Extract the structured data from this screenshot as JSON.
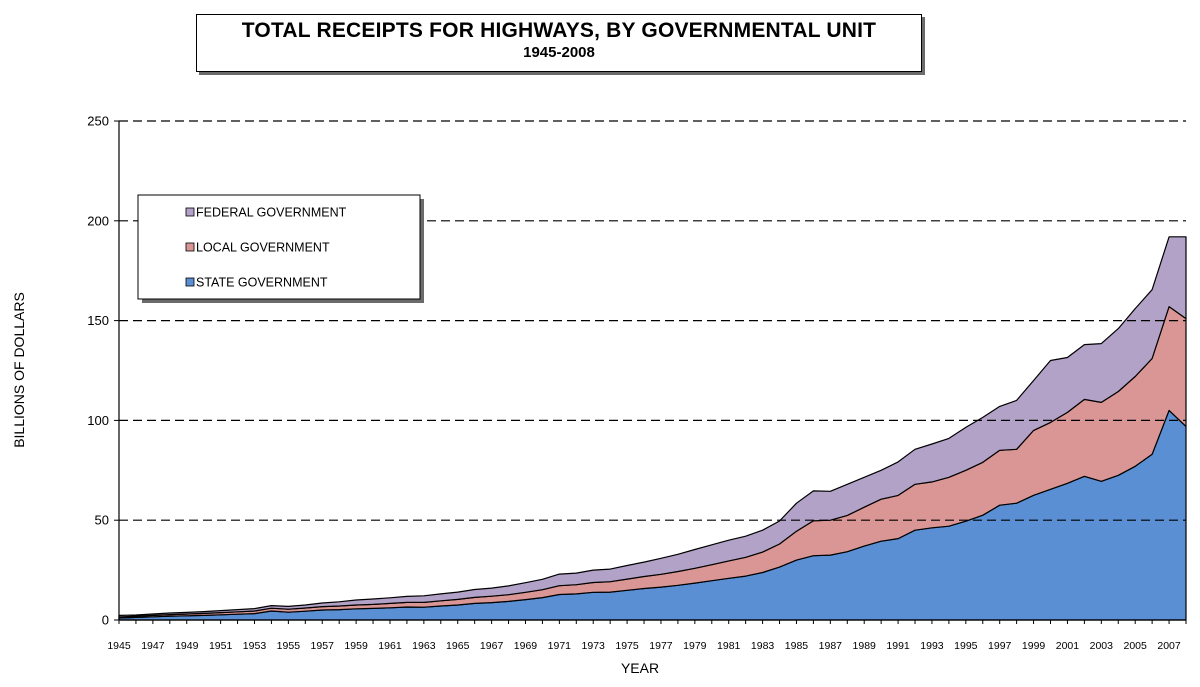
{
  "chart_data": {
    "type": "area",
    "stacked": true,
    "title": "TOTAL RECEIPTS FOR HIGHWAYS, BY GOVERNMENTAL UNIT",
    "subtitle": "1945-2008",
    "xlabel": "YEAR",
    "ylabel": "BILLIONS OF DOLLARS",
    "ylim": [
      0,
      250
    ],
    "yticks": [
      0,
      50,
      100,
      150,
      200,
      250
    ],
    "grid": "dashed horizontal",
    "legend_position": "top-left",
    "x": [
      1945,
      1946,
      1947,
      1948,
      1949,
      1950,
      1951,
      1952,
      1953,
      1954,
      1955,
      1956,
      1957,
      1958,
      1959,
      1960,
      1961,
      1962,
      1963,
      1964,
      1965,
      1966,
      1967,
      1968,
      1969,
      1970,
      1971,
      1972,
      1973,
      1974,
      1975,
      1976,
      1977,
      1978,
      1979,
      1980,
      1981,
      1982,
      1983,
      1984,
      1985,
      1986,
      1987,
      1988,
      1989,
      1990,
      1991,
      1992,
      1993,
      1994,
      1995,
      1996,
      1997,
      1998,
      1999,
      2000,
      2001,
      2002,
      2003,
      2004,
      2005,
      2006,
      2007,
      2008
    ],
    "xticks": [
      "1945",
      "1947",
      "1949",
      "1951",
      "1953",
      "1955",
      "1957",
      "1959",
      "1961",
      "1963",
      "1965",
      "1967",
      "1969",
      "1971",
      "1973",
      "1975",
      "1977",
      "1979",
      "1981",
      "1983",
      "1985",
      "1987",
      "1989",
      "1991",
      "1993",
      "1995",
      "1997",
      "1999",
      "2001",
      "2003",
      "2005",
      "2007"
    ],
    "series": [
      {
        "name": "STATE GOVERNMENT",
        "color": "#5b8fd4",
        "values": [
          1.0,
          1.3,
          1.6,
          1.9,
          2.1,
          2.3,
          2.6,
          2.9,
          3.2,
          4.5,
          3.9,
          4.4,
          5.0,
          5.2,
          5.6,
          5.8,
          6.1,
          6.5,
          6.4,
          7.0,
          7.5,
          8.3,
          8.7,
          9.3,
          10.2,
          11.2,
          12.8,
          13.1,
          13.9,
          14.0,
          14.9,
          15.8,
          16.5,
          17.4,
          18.5,
          19.7,
          20.9,
          22.0,
          23.8,
          26.5,
          30.0,
          32.2,
          32.5,
          34.2,
          37.0,
          39.5,
          40.8,
          45.0,
          46.2,
          47.0,
          49.5,
          52.5,
          57.5,
          58.5,
          62.5,
          65.5,
          68.5,
          72.0,
          69.5,
          72.5,
          77.0,
          83.0,
          105.0,
          97.0
        ]
      },
      {
        "name": "LOCAL GOVERNMENT",
        "color": "#d99694",
        "values": [
          0.5,
          0.6,
          0.7,
          0.8,
          0.9,
          1.0,
          1.1,
          1.2,
          1.3,
          1.4,
          1.5,
          1.6,
          1.7,
          1.8,
          1.9,
          2.0,
          2.2,
          2.3,
          2.4,
          2.6,
          2.8,
          3.0,
          3.2,
          3.4,
          3.7,
          4.0,
          4.4,
          4.6,
          4.9,
          5.2,
          5.6,
          6.0,
          6.4,
          6.9,
          7.4,
          8.0,
          8.7,
          9.4,
          10.2,
          11.6,
          14.5,
          17.5,
          17.5,
          18.2,
          19.5,
          21.0,
          21.6,
          23.0,
          23.0,
          24.5,
          25.5,
          26.5,
          27.5,
          27.0,
          32.5,
          33.5,
          35.5,
          38.5,
          39.5,
          42.0,
          45.0,
          48.0,
          52.0,
          54.0
        ]
      },
      {
        "name": "FEDERAL GOVERNMENT",
        "color": "#b3a2c7",
        "values": [
          0.8,
          0.6,
          0.7,
          0.8,
          0.8,
          0.9,
          1.0,
          1.1,
          1.2,
          1.3,
          1.4,
          1.5,
          1.8,
          2.1,
          2.5,
          2.7,
          2.8,
          3.0,
          3.3,
          3.5,
          3.7,
          4.0,
          4.1,
          4.4,
          4.8,
          5.2,
          5.8,
          5.8,
          6.2,
          6.3,
          6.8,
          7.2,
          8.0,
          8.6,
          9.4,
          10.0,
          10.4,
          10.6,
          11.0,
          11.5,
          14.0,
          15.0,
          14.5,
          15.6,
          15.0,
          14.5,
          16.8,
          17.5,
          19.0,
          19.5,
          21.5,
          22.5,
          22.0,
          24.5,
          25.0,
          31.0,
          27.5,
          27.5,
          29.5,
          31.5,
          34.0,
          34.5,
          35.0,
          41.0
        ]
      }
    ]
  }
}
